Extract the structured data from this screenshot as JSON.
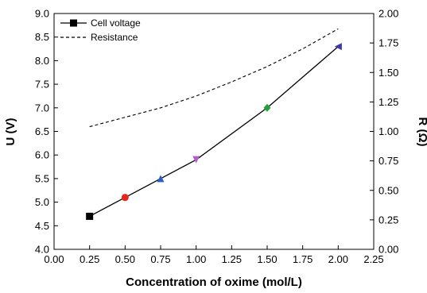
{
  "chart_data": {
    "type": "line",
    "xlabel": "Concentration of oxime (mol/L)",
    "ylabel": "U (V)",
    "y2label": "R (Ω)",
    "xlim": [
      0.0,
      2.25
    ],
    "ylim": [
      4.0,
      9.0
    ],
    "y2lim": [
      0.0,
      2.0
    ],
    "x_ticks": [
      "0.00",
      "0.25",
      "0.50",
      "0.75",
      "1.00",
      "1.25",
      "1.50",
      "1.75",
      "2.00",
      "2.25"
    ],
    "y_ticks": [
      "4.0",
      "4.5",
      "5.0",
      "5.5",
      "6.0",
      "6.5",
      "7.0",
      "7.5",
      "8.0",
      "8.5",
      "9.0"
    ],
    "y2_ticks": [
      "0.00",
      "0.25",
      "0.50",
      "0.75",
      "1.00",
      "1.25",
      "1.50",
      "1.75",
      "2.00"
    ],
    "grid": false,
    "legend_position": "top-left",
    "series": [
      {
        "name": "Cell voltage",
        "axis": "left",
        "style": "solid-with-markers",
        "color": "#000000",
        "x": [
          0.25,
          0.5,
          0.75,
          1.0,
          1.5,
          2.0
        ],
        "y": [
          4.7,
          5.1,
          5.5,
          5.9,
          7.0,
          8.3
        ],
        "marker_colors": [
          "#000000",
          "#e8261c",
          "#2a5ec8",
          "#b05ec8",
          "#1ea33a",
          "#3a3aa0"
        ],
        "marker_shapes": [
          "square",
          "circle",
          "triangle-up",
          "triangle-down",
          "diamond",
          "triangle-left"
        ]
      },
      {
        "name": "Resistance",
        "axis": "right",
        "style": "dashed",
        "color": "#000000",
        "x": [
          0.25,
          0.5,
          0.75,
          1.0,
          1.25,
          1.5,
          1.75,
          2.0
        ],
        "y": [
          1.04,
          1.12,
          1.2,
          1.3,
          1.42,
          1.55,
          1.7,
          1.87
        ]
      }
    ]
  }
}
